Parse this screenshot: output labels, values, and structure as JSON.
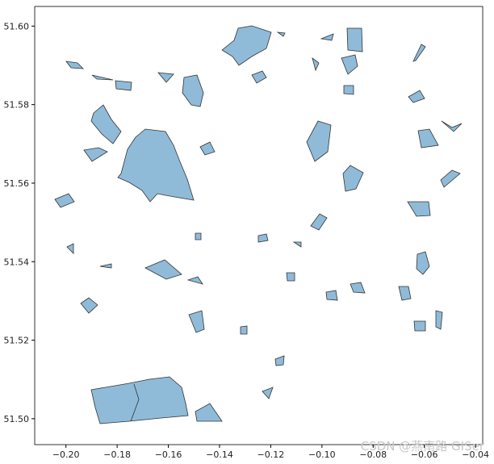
{
  "chart_data": {
    "type": "map",
    "xlim": [
      -0.2122,
      -0.0372
    ],
    "ylim": [
      51.4934,
      51.605
    ],
    "xticks": [
      {
        "value": -0.2,
        "label": "−0.20"
      },
      {
        "value": -0.18,
        "label": "−0.18"
      },
      {
        "value": -0.16,
        "label": "−0.16"
      },
      {
        "value": -0.14,
        "label": "−0.14"
      },
      {
        "value": -0.12,
        "label": "−0.12"
      },
      {
        "value": -0.1,
        "label": "−0.10"
      },
      {
        "value": -0.08,
        "label": "−0.08"
      },
      {
        "value": -0.06,
        "label": "−0.06"
      },
      {
        "value": -0.04,
        "label": "−0.04"
      }
    ],
    "yticks": [
      {
        "value": 51.5,
        "label": "51.50"
      },
      {
        "value": 51.52,
        "label": "51.52"
      },
      {
        "value": 51.54,
        "label": "51.54"
      },
      {
        "value": 51.56,
        "label": "51.56"
      },
      {
        "value": 51.58,
        "label": "51.58"
      },
      {
        "value": 51.6,
        "label": "51.60"
      }
    ],
    "watermark": "CSDN @燕南路 GISer"
  }
}
